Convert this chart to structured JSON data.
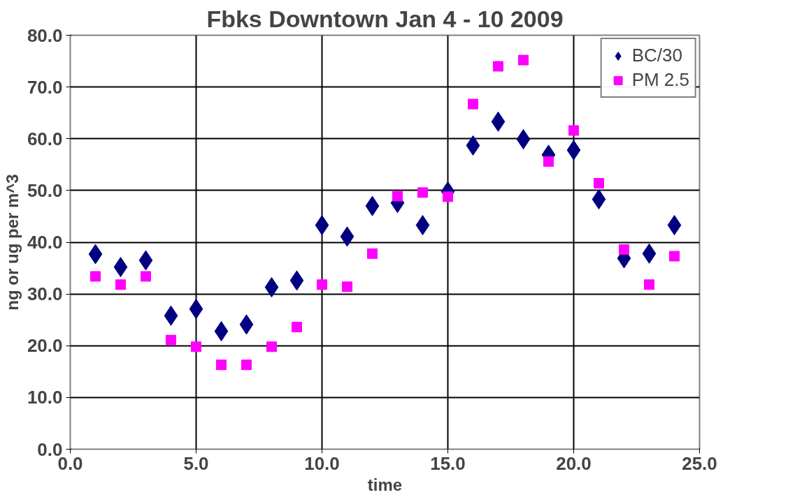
{
  "chart_data": {
    "type": "scatter",
    "title": "Fbks Downtown Jan 4 - 10 2009",
    "xlabel": "time",
    "ylabel": "ng or ug per m^3",
    "x": [
      1,
      2,
      3,
      4,
      5,
      6,
      7,
      8,
      9,
      10,
      11,
      12,
      13,
      14,
      15,
      16,
      17,
      18,
      19,
      20,
      21,
      22,
      23,
      24
    ],
    "series": [
      {
        "name": "BC/30",
        "color": "#000080",
        "marker": "diamond",
        "values": [
          37.7,
          35.2,
          36.5,
          25.8,
          27.1,
          22.8,
          24.1,
          31.3,
          32.6,
          43.3,
          41.1,
          47.0,
          47.6,
          43.3,
          49.8,
          58.7,
          63.3,
          59.9,
          56.9,
          57.8,
          48.3,
          36.9,
          37.8,
          43.3
        ]
      },
      {
        "name": "PM 2.5",
        "color": "#ff00ff",
        "marker": "square",
        "values": [
          33.4,
          31.8,
          33.4,
          21.1,
          19.8,
          16.3,
          16.3,
          19.8,
          23.6,
          31.8,
          31.4,
          37.8,
          48.9,
          49.6,
          48.8,
          66.7,
          74.0,
          75.2,
          55.6,
          61.6,
          51.4,
          38.6,
          31.8,
          37.3
        ]
      }
    ],
    "xlim": [
      0,
      25
    ],
    "xticks": [
      {
        "value": 0,
        "label": "0.0"
      },
      {
        "value": 5,
        "label": "5.0"
      },
      {
        "value": 10,
        "label": "10.0"
      },
      {
        "value": 15,
        "label": "15.0"
      },
      {
        "value": 20,
        "label": "20.0"
      },
      {
        "value": 25,
        "label": "25.0"
      }
    ],
    "ylim": [
      0,
      80
    ],
    "yticks": [
      {
        "value": 0,
        "label": "0.0"
      },
      {
        "value": 10,
        "label": "10.0"
      },
      {
        "value": 20,
        "label": "20.0"
      },
      {
        "value": 30,
        "label": "30.0"
      },
      {
        "value": 40,
        "label": "40.0"
      },
      {
        "value": 50,
        "label": "50.0"
      },
      {
        "value": 60,
        "label": "60.0"
      },
      {
        "value": 70,
        "label": "70.0"
      },
      {
        "value": 80,
        "label": "80.0"
      }
    ],
    "grid": true,
    "legend": "top right"
  }
}
